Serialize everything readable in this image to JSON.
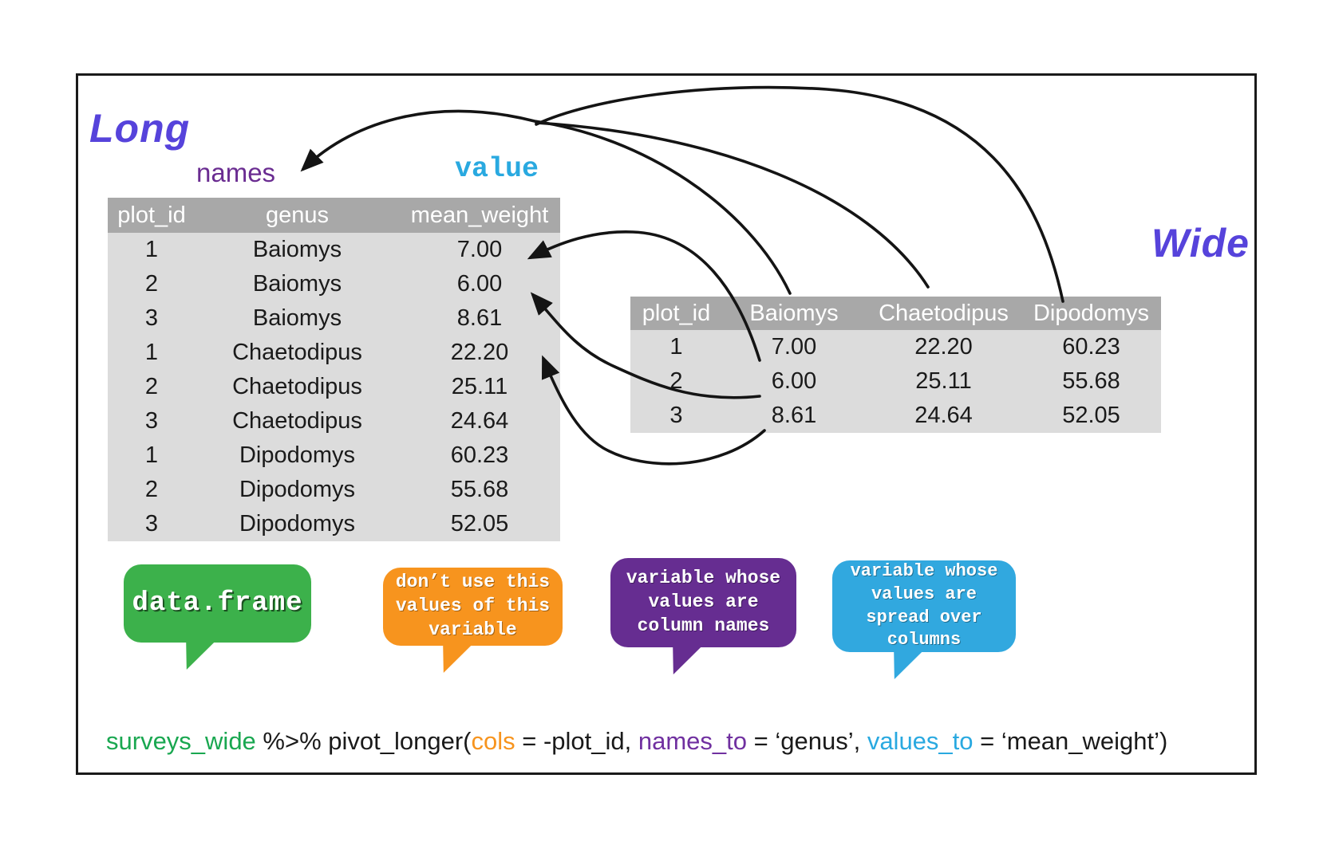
{
  "labels": {
    "long": "Long",
    "wide": "Wide",
    "names": "names",
    "value": "value"
  },
  "colors": {
    "long_wide": "#5643DB",
    "names": "#6A2C91",
    "value": "#29A9E0",
    "table_header_bg": "#A8A8A8",
    "table_body_bg": "#DCDCDC",
    "table_header_text": "#FFFFFF",
    "arrow": "#141414"
  },
  "long_table": {
    "columns": [
      "plot_id",
      "genus",
      "mean_weight"
    ],
    "rows": [
      [
        "1",
        "Baiomys",
        "7.00"
      ],
      [
        "2",
        "Baiomys",
        "6.00"
      ],
      [
        "3",
        "Baiomys",
        "8.61"
      ],
      [
        "1",
        "Chaetodipus",
        "22.20"
      ],
      [
        "2",
        "Chaetodipus",
        "25.11"
      ],
      [
        "3",
        "Chaetodipus",
        "24.64"
      ],
      [
        "1",
        "Dipodomys",
        "60.23"
      ],
      [
        "2",
        "Dipodomys",
        "55.68"
      ],
      [
        "3",
        "Dipodomys",
        "52.05"
      ]
    ]
  },
  "wide_table": {
    "columns": [
      "plot_id",
      "Baiomys",
      "Chaetodipus",
      "Dipodomys"
    ],
    "rows": [
      [
        "1",
        "7.00",
        "22.20",
        "60.23"
      ],
      [
        "2",
        "6.00",
        "25.11",
        "55.68"
      ],
      [
        "3",
        "8.61",
        "24.64",
        "52.05"
      ]
    ]
  },
  "bubbles": [
    {
      "name": "data-frame-note",
      "color": "#3CB14B",
      "lines": [
        "data.frame"
      ]
    },
    {
      "name": "dont-use-note",
      "color": "#F7941E",
      "lines": [
        "don’t use this",
        "values of this",
        "variable"
      ]
    },
    {
      "name": "column-names-note",
      "color": "#662D91",
      "lines": [
        "variable whose",
        "values are",
        "column names"
      ]
    },
    {
      "name": "spread-columns-note",
      "color": "#31A8DF",
      "lines": [
        "variable whose",
        "values are",
        "spread over",
        "columns"
      ]
    }
  ],
  "code": {
    "segments": [
      {
        "text": "surveys_wide",
        "color": "#19A750"
      },
      {
        "text": " %>% pivot_longer(",
        "color": "#1A1A1A"
      },
      {
        "text": "cols",
        "color": "#F7941E"
      },
      {
        "text": " = -plot_id, ",
        "color": "#1A1A1A"
      },
      {
        "text": "names_to",
        "color": "#7030A0"
      },
      {
        "text": " = ‘genus’, ",
        "color": "#1A1A1A"
      },
      {
        "text": "values_to",
        "color": "#29A9E0"
      },
      {
        "text": " = ‘mean_weight’)",
        "color": "#1A1A1A"
      }
    ]
  }
}
